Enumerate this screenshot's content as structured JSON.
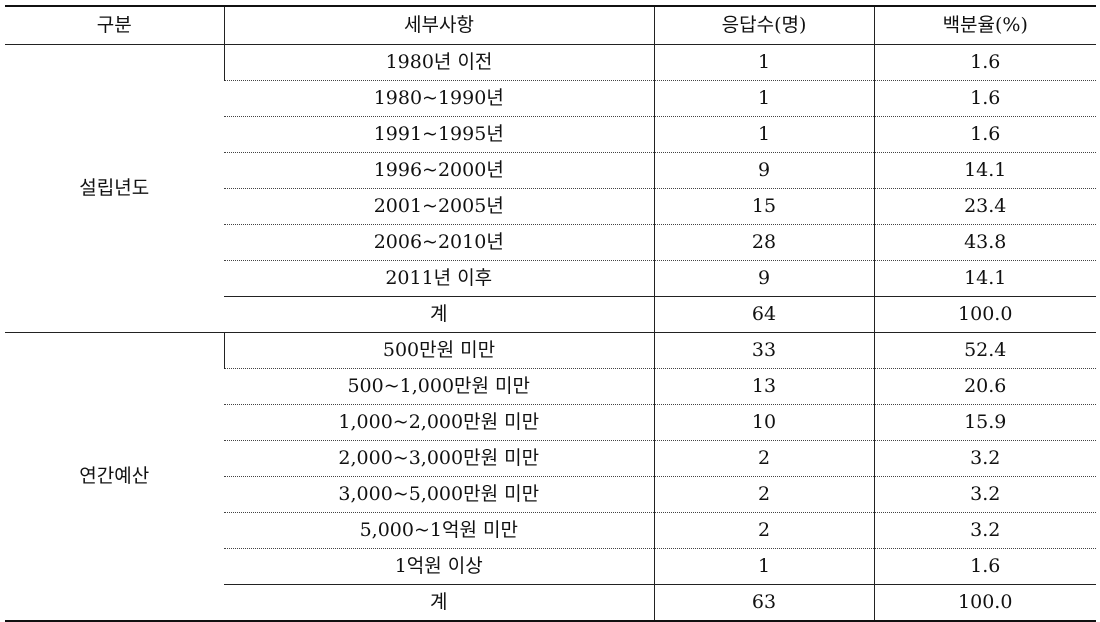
{
  "headers": [
    "구분",
    "세부사항",
    "응답수(명)",
    "백분율(%)"
  ],
  "groups": [
    {
      "category": "설립년도",
      "rows": [
        {
          "detail": "1980년 이전",
          "count": "1",
          "percent": "1.6"
        },
        {
          "detail": "1980~1990년",
          "count": "1",
          "percent": "1.6"
        },
        {
          "detail": "1991~1995년",
          "count": "1",
          "percent": "1.6"
        },
        {
          "detail": "1996~2000년",
          "count": "9",
          "percent": "14.1"
        },
        {
          "detail": "2001~2005년",
          "count": "15",
          "percent": "23.4"
        },
        {
          "detail": "2006~2010년",
          "count": "28",
          "percent": "43.8"
        },
        {
          "detail": "2011년 이후",
          "count": "9",
          "percent": "14.1"
        },
        {
          "detail": "계",
          "count": "64",
          "percent": "100.0"
        }
      ]
    },
    {
      "category": "연간예산",
      "rows": [
        {
          "detail": "500만원 미만",
          "count": "33",
          "percent": "52.4"
        },
        {
          "detail": "500~1,000만원 미만",
          "count": "13",
          "percent": "20.6"
        },
        {
          "detail": "1,000~2,000만원 미만",
          "count": "10",
          "percent": "15.9"
        },
        {
          "detail": "2,000~3,000만원 미만",
          "count": "2",
          "percent": "3.2"
        },
        {
          "detail": "3,000~5,000만원 미만",
          "count": "2",
          "percent": "3.2"
        },
        {
          "detail": "5,000~1억원 미만",
          "count": "2",
          "percent": "3.2"
        },
        {
          "detail": "1억원 이상",
          "count": "1",
          "percent": "1.6"
        },
        {
          "detail": "계",
          "count": "63",
          "percent": "100.0"
        }
      ]
    }
  ]
}
